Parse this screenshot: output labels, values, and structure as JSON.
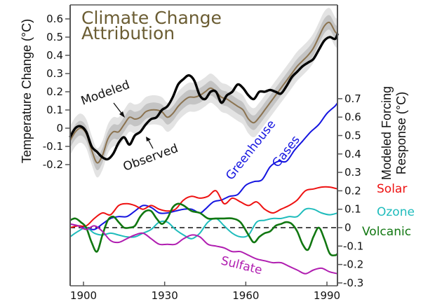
{
  "chart_data": {
    "type": "line",
    "title": "Climate Change Attribution",
    "title_lines": [
      "Climate Change",
      "Attribution"
    ],
    "xlabel": "",
    "xlim": [
      1895,
      1994
    ],
    "x_ticks": [
      1900,
      1930,
      1960,
      1990
    ],
    "x_tick_labels": [
      "1900",
      "1930",
      "1960",
      "1990"
    ],
    "temperature_panel": {
      "ylabel": "Temperature Change (°C)",
      "ylim": [
        -0.2,
        0.6
      ],
      "y_ticks": [
        -0.2,
        -0.1,
        0,
        0.1,
        0.2,
        0.3,
        0.4,
        0.5,
        0.6
      ],
      "y_tick_labels": [
        "-0.2",
        "-0.1",
        "0",
        "0.1",
        "0.2",
        "0.3",
        "0.4",
        "0.5",
        "0.6"
      ],
      "annotations": [
        "Modeled",
        "Observed"
      ],
      "series": [
        {
          "name": "Modeled",
          "color": "#8b7350",
          "band_inner": 0.04,
          "band_outer": 0.08,
          "x": [
            1895,
            1897,
            1899,
            1901,
            1903,
            1905,
            1907,
            1909,
            1911,
            1913,
            1915,
            1917,
            1919,
            1921,
            1923,
            1925,
            1927,
            1929,
            1931,
            1933,
            1935,
            1937,
            1939,
            1941,
            1943,
            1945,
            1947,
            1949,
            1951,
            1953,
            1955,
            1957,
            1959,
            1961,
            1963,
            1965,
            1967,
            1969,
            1971,
            1973,
            1975,
            1977,
            1979,
            1981,
            1983,
            1985,
            1987,
            1989,
            1991,
            1993,
            1994
          ],
          "values": [
            -0.07,
            -0.02,
            0.0,
            -0.03,
            -0.12,
            -0.19,
            -0.15,
            -0.06,
            -0.02,
            -0.02,
            0.02,
            0.06,
            0.05,
            0.06,
            0.09,
            0.1,
            0.1,
            0.09,
            0.06,
            0.08,
            0.12,
            0.15,
            0.17,
            0.17,
            0.18,
            0.2,
            0.22,
            0.2,
            0.17,
            0.16,
            0.14,
            0.12,
            0.1,
            0.05,
            0.03,
            0.06,
            0.1,
            0.14,
            0.18,
            0.22,
            0.26,
            0.3,
            0.34,
            0.37,
            0.4,
            0.44,
            0.5,
            0.56,
            0.58,
            0.53,
            0.52
          ]
        },
        {
          "name": "Observed",
          "color": "#000000",
          "x": [
            1895,
            1897,
            1899,
            1901,
            1903,
            1905,
            1907,
            1909,
            1911,
            1913,
            1915,
            1917,
            1919,
            1921,
            1923,
            1925,
            1927,
            1929,
            1931,
            1933,
            1935,
            1937,
            1939,
            1941,
            1943,
            1945,
            1947,
            1949,
            1951,
            1953,
            1955,
            1957,
            1959,
            1961,
            1963,
            1965,
            1967,
            1969,
            1971,
            1973,
            1975,
            1977,
            1979,
            1981,
            1983,
            1985,
            1987,
            1989,
            1991,
            1993,
            1994
          ],
          "values": [
            -0.05,
            0.0,
            0.01,
            -0.02,
            -0.1,
            -0.13,
            -0.16,
            -0.17,
            -0.14,
            -0.08,
            -0.05,
            -0.09,
            -0.04,
            -0.02,
            0.02,
            0.05,
            0.06,
            0.1,
            0.12,
            0.17,
            0.24,
            0.27,
            0.29,
            0.26,
            0.18,
            0.16,
            0.2,
            0.2,
            0.14,
            0.18,
            0.2,
            0.24,
            0.22,
            0.18,
            0.16,
            0.2,
            0.2,
            0.21,
            0.2,
            0.19,
            0.23,
            0.28,
            0.31,
            0.34,
            0.36,
            0.38,
            0.43,
            0.48,
            0.5,
            0.49,
            0.52
          ]
        }
      ]
    },
    "forcing_panel": {
      "ylabel": "Modeled Forcing Response (°C)",
      "ylabel_lines": [
        "Modeled Forcing",
        "Response (°C)"
      ],
      "ylim": [
        -0.3,
        0.7
      ],
      "y_ticks": [
        -0.3,
        -0.2,
        -0.1,
        0,
        0.1,
        0.2,
        0.3,
        0.4,
        0.5,
        0.6,
        0.7
      ],
      "y_tick_labels": [
        "-0.3",
        "-0.2",
        "-0.1",
        "0",
        "0.1",
        "0.2",
        "0.3",
        "0.4",
        "0.5",
        "0.6",
        "0.7"
      ],
      "zero_line": "dashed",
      "series": [
        {
          "name": "Greenhouse Gases",
          "label_lines": [
            "Greenhouse",
            "Gases"
          ],
          "color": "#1515e0",
          "x": [
            1895,
            1898,
            1901,
            1904,
            1907,
            1910,
            1913,
            1916,
            1919,
            1922,
            1925,
            1928,
            1931,
            1934,
            1937,
            1940,
            1943,
            1945,
            1948,
            1951,
            1954,
            1957,
            1960,
            1963,
            1966,
            1969,
            1972,
            1975,
            1978,
            1981,
            1984,
            1987,
            1990,
            1993,
            1994
          ],
          "values": [
            0.02,
            0.01,
            0.0,
            -0.01,
            0.02,
            0.05,
            0.06,
            0.06,
            0.09,
            0.12,
            0.11,
            0.08,
            0.08,
            0.09,
            0.1,
            0.1,
            0.08,
            0.1,
            0.14,
            0.15,
            0.17,
            0.18,
            0.23,
            0.25,
            0.26,
            0.33,
            0.36,
            0.36,
            0.42,
            0.47,
            0.52,
            0.56,
            0.62,
            0.66,
            0.68
          ]
        },
        {
          "name": "Solar",
          "color": "#ee1111",
          "x": [
            1895,
            1898,
            1901,
            1904,
            1907,
            1910,
            1913,
            1916,
            1919,
            1922,
            1925,
            1928,
            1931,
            1934,
            1937,
            1940,
            1943,
            1946,
            1949,
            1952,
            1955,
            1958,
            1961,
            1964,
            1967,
            1970,
            1973,
            1976,
            1979,
            1982,
            1985,
            1988,
            1991,
            1994
          ],
          "values": [
            0.0,
            0.01,
            0.01,
            0.05,
            0.08,
            0.07,
            0.12,
            0.13,
            0.12,
            0.1,
            0.12,
            0.1,
            0.09,
            0.1,
            0.15,
            0.17,
            0.16,
            0.17,
            0.2,
            0.13,
            0.16,
            0.14,
            0.12,
            0.14,
            0.1,
            0.08,
            0.1,
            0.12,
            0.15,
            0.2,
            0.21,
            0.22,
            0.22,
            0.21
          ]
        },
        {
          "name": "Ozone",
          "color": "#1fbcbc",
          "x": [
            1895,
            1898,
            1901,
            1904,
            1907,
            1910,
            1913,
            1916,
            1919,
            1922,
            1925,
            1928,
            1931,
            1934,
            1937,
            1940,
            1943,
            1946,
            1949,
            1952,
            1955,
            1958,
            1961,
            1964,
            1967,
            1970,
            1973,
            1976,
            1979,
            1982,
            1985,
            1988,
            1991,
            1994
          ],
          "values": [
            -0.05,
            -0.02,
            0.0,
            -0.03,
            -0.04,
            -0.03,
            -0.04,
            -0.05,
            -0.05,
            -0.03,
            -0.01,
            0.03,
            0.03,
            -0.01,
            -0.04,
            -0.06,
            -0.03,
            0.03,
            0.05,
            0.01,
            -0.03,
            -0.05,
            -0.04,
            0.03,
            0.04,
            0.05,
            0.05,
            0.06,
            0.06,
            0.1,
            0.1,
            0.08,
            0.07,
            0.08
          ]
        },
        {
          "name": "Volcanic",
          "color": "#117711",
          "x": [
            1895,
            1897,
            1899,
            1901,
            1903,
            1905,
            1907,
            1909,
            1911,
            1913,
            1915,
            1917,
            1919,
            1921,
            1923,
            1925,
            1927,
            1929,
            1931,
            1933,
            1935,
            1937,
            1940,
            1943,
            1946,
            1949,
            1952,
            1955,
            1958,
            1961,
            1963,
            1965,
            1967,
            1969,
            1971,
            1973,
            1975,
            1977,
            1979,
            1981,
            1983,
            1985,
            1987,
            1989,
            1991,
            1993,
            1994
          ],
          "values": [
            0.04,
            0.05,
            0.03,
            0.0,
            -0.08,
            -0.13,
            -0.04,
            0.04,
            0.06,
            0.03,
            0.0,
            0.0,
            0.01,
            0.06,
            0.09,
            0.09,
            0.05,
            0.02,
            0.05,
            0.11,
            0.13,
            0.12,
            0.09,
            0.08,
            0.05,
            0.05,
            0.05,
            0.05,
            0.03,
            -0.04,
            -0.08,
            -0.05,
            -0.03,
            -0.02,
            0.01,
            0.02,
            0.03,
            0.02,
            -0.02,
            -0.09,
            -0.12,
            -0.05,
            0.0,
            -0.06,
            -0.14,
            -0.15,
            -0.14
          ]
        },
        {
          "name": "Sulfate",
          "color": "#b01db0",
          "x": [
            1895,
            1898,
            1901,
            1904,
            1907,
            1910,
            1913,
            1916,
            1919,
            1922,
            1925,
            1928,
            1931,
            1934,
            1937,
            1940,
            1943,
            1946,
            1949,
            1952,
            1955,
            1958,
            1961,
            1964,
            1967,
            1970,
            1973,
            1976,
            1979,
            1982,
            1985,
            1988,
            1991,
            1994
          ],
          "values": [
            0.02,
            0.01,
            -0.01,
            0.01,
            -0.02,
            -0.07,
            -0.08,
            -0.06,
            -0.04,
            -0.03,
            -0.06,
            -0.09,
            -0.09,
            -0.09,
            -0.06,
            -0.04,
            -0.05,
            -0.09,
            -0.1,
            -0.11,
            -0.13,
            -0.13,
            -0.15,
            -0.17,
            -0.18,
            -0.19,
            -0.19,
            -0.21,
            -0.23,
            -0.25,
            -0.23,
            -0.22,
            -0.24,
            -0.25
          ]
        }
      ]
    }
  }
}
